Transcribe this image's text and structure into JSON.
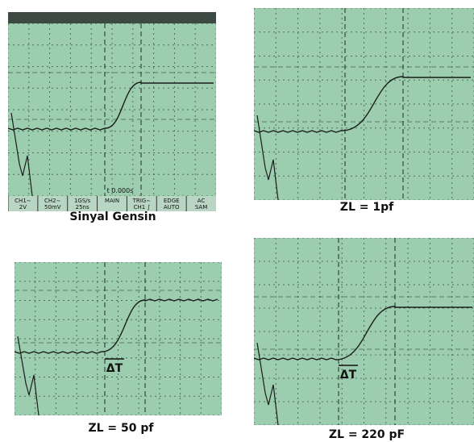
{
  "panels": [
    {
      "caption": "Sinyal Gensin",
      "marker": "t 0.000s",
      "status": [
        [
          "CH1∼",
          "2V"
        ],
        [
          "CH2∼",
          "50mV"
        ],
        [
          "1GS/s",
          "25ns"
        ],
        [
          "MAIN"
        ],
        [
          "TRIG∼",
          "CH1 ∫"
        ],
        [
          "EDGE",
          "AUTO"
        ],
        [
          "AC",
          "SAM"
        ]
      ]
    },
    {
      "caption": "ZL = 1pf"
    },
    {
      "caption": "ZL = 50 pf",
      "delta": "ΔT"
    },
    {
      "caption": "ZL = 220 pF",
      "delta": "ΔT"
    }
  ]
}
